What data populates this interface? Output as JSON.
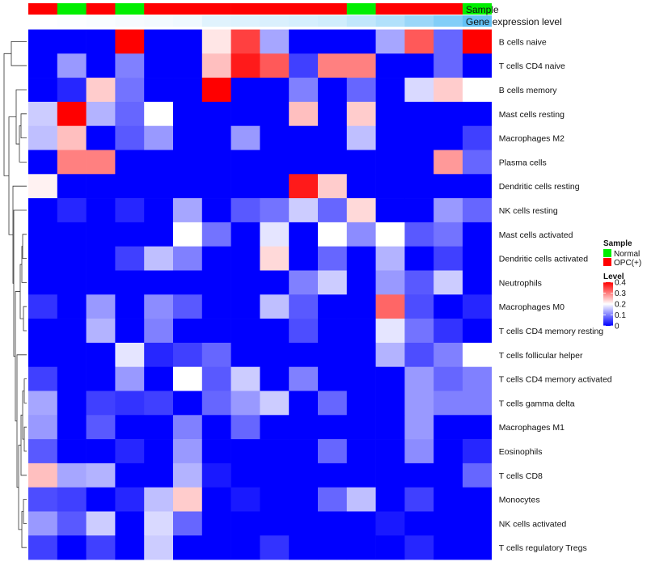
{
  "chart_data": {
    "type": "heatmap",
    "title": "",
    "annotations": [
      {
        "name": "Sample",
        "values": [
          "OPC(+)",
          "Normal",
          "OPC(+)",
          "Normal",
          "OPC(+)",
          "OPC(+)",
          "OPC(+)",
          "OPC(+)",
          "OPC(+)",
          "OPC(+)",
          "OPC(+)",
          "Normal",
          "OPC(+)",
          "OPC(+)",
          "OPC(+)",
          "Normal"
        ]
      },
      {
        "name": "Gene expression level",
        "values": [
          0.0,
          0.02,
          0.04,
          0.06,
          0.08,
          0.1,
          0.2,
          0.22,
          0.24,
          0.27,
          0.3,
          0.4,
          0.5,
          0.65,
          0.8,
          1.0
        ]
      }
    ],
    "rows": [
      "B cells naive",
      "T cells CD4 naive",
      "B cells memory",
      "Mast cells resting",
      "Macrophages M2",
      "Plasma cells",
      "Dendritic cells resting",
      "NK cells resting",
      "Mast cells activated",
      "Dendritic cells activated",
      "Neutrophils",
      "Macrophages M0",
      "T cells CD4 memory resting",
      "T cells follicular helper",
      "T cells CD4 memory activated",
      "T cells gamma delta",
      "Macrophages M1",
      "Eosinophils",
      "T cells CD8",
      "Monocytes",
      "NK cells activated",
      "T cells regulatory  Tregs"
    ],
    "values": [
      [
        0,
        0,
        0,
        0.4,
        0,
        0,
        0.22,
        0.35,
        0.13,
        0,
        0,
        0,
        0.13,
        0.33,
        0.08,
        0.4
      ],
      [
        0,
        0.12,
        0,
        0.1,
        0,
        0,
        0.25,
        0.38,
        0.33,
        0.05,
        0.3,
        0.3,
        0,
        0,
        0.08,
        0
      ],
      [
        0,
        0.03,
        0.24,
        0.09,
        0,
        0,
        0.4,
        0,
        0,
        0.1,
        0,
        0.08,
        0,
        0.17,
        0.24,
        0.2
      ],
      [
        0.16,
        0.4,
        0.14,
        0.08,
        0.2,
        0,
        0,
        0,
        0,
        0.25,
        0,
        0.24,
        0,
        0,
        0,
        0
      ],
      [
        0.15,
        0.25,
        0,
        0.07,
        0.12,
        0,
        0,
        0.12,
        0,
        0,
        0,
        0.15,
        0,
        0,
        0,
        0.05
      ],
      [
        0,
        0.3,
        0.3,
        0,
        0,
        0,
        0,
        0,
        0,
        0,
        0,
        0,
        0,
        0,
        0.28,
        0.08
      ],
      [
        0.21,
        0,
        0,
        0,
        0,
        0,
        0,
        0,
        0,
        0.38,
        0.24,
        0,
        0,
        0,
        0,
        0
      ],
      [
        0,
        0.03,
        0,
        0.03,
        0,
        0.13,
        0,
        0.07,
        0.09,
        0.16,
        0.08,
        0.23,
        0,
        0,
        0.12,
        0.08
      ],
      [
        0,
        0,
        0,
        0,
        0,
        0.2,
        0.09,
        0,
        0.18,
        0,
        0.2,
        0.11,
        0.2,
        0.07,
        0.09,
        0
      ],
      [
        0,
        0,
        0,
        0.05,
        0.15,
        0.1,
        0,
        0,
        0.23,
        0,
        0.08,
        0,
        0.14,
        0,
        0.05,
        0
      ],
      [
        0,
        0,
        0,
        0,
        0,
        0,
        0,
        0,
        0,
        0.1,
        0.16,
        0,
        0.12,
        0.07,
        0.16,
        0
      ],
      [
        0.04,
        0,
        0.12,
        0,
        0.11,
        0.07,
        0,
        0,
        0.15,
        0.07,
        0,
        0,
        0.32,
        0.06,
        0,
        0.03
      ],
      [
        0,
        0,
        0.14,
        0,
        0.1,
        0,
        0,
        0,
        0,
        0.06,
        0,
        0,
        0.18,
        0.09,
        0.04,
        0
      ],
      [
        0,
        0,
        0,
        0.18,
        0.03,
        0.05,
        0.08,
        0,
        0,
        0,
        0,
        0,
        0.14,
        0.06,
        0.1,
        0.2
      ],
      [
        0.05,
        0,
        0,
        0.12,
        0,
        0.2,
        0.07,
        0.16,
        0,
        0.1,
        0,
        0,
        0,
        0.12,
        0.08,
        0.1
      ],
      [
        0.13,
        0,
        0.05,
        0.04,
        0.05,
        0,
        0.08,
        0.12,
        0.16,
        0,
        0.08,
        0,
        0,
        0.12,
        0.1,
        0.1
      ],
      [
        0.12,
        0,
        0.07,
        0,
        0,
        0.1,
        0,
        0.08,
        0,
        0,
        0,
        0,
        0,
        0.12,
        0,
        0
      ],
      [
        0.07,
        0,
        0,
        0.03,
        0,
        0.12,
        0,
        0,
        0,
        0,
        0.08,
        0,
        0,
        0.11,
        0,
        0.03
      ],
      [
        0.25,
        0.13,
        0.14,
        0,
        0,
        0.14,
        0.02,
        0,
        0,
        0,
        0,
        0,
        0,
        0,
        0,
        0.08
      ],
      [
        0.06,
        0.05,
        0,
        0.03,
        0.15,
        0.24,
        0,
        0.02,
        0,
        0,
        0.08,
        0.15,
        0,
        0.05,
        0,
        0
      ],
      [
        0.12,
        0.07,
        0.16,
        0,
        0.17,
        0.08,
        0,
        0,
        0,
        0,
        0,
        0,
        0.02,
        0,
        0,
        0
      ],
      [
        0.05,
        0,
        0.05,
        0,
        0.16,
        0,
        0,
        0,
        0.04,
        0,
        0,
        0,
        0,
        0.03,
        0,
        0
      ]
    ],
    "legend": {
      "sample_title": "Sample",
      "sample_items": [
        {
          "label": "Normal",
          "color": "#00ee00"
        },
        {
          "label": "OPC(+)",
          "color": "#ff0000"
        }
      ],
      "level_title": "Level",
      "level_ticks": [
        0.4,
        0.3,
        0.2,
        0.1,
        0
      ],
      "colors": {
        "low": "#0000ff",
        "mid": "#ffffff",
        "high": "#ff0000"
      },
      "range": [
        0,
        0.4
      ]
    },
    "annotation_colors": {
      "low": "#ffffff",
      "high": "#63c2f6"
    }
  }
}
